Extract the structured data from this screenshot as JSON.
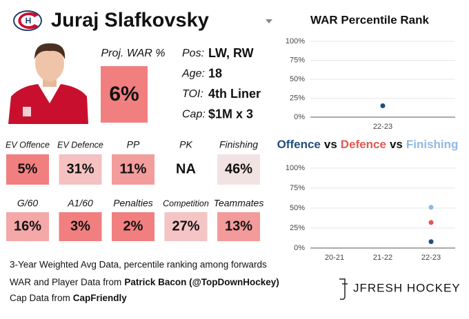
{
  "header": {
    "name": "Juraj Slafkovsky"
  },
  "card": {
    "proj_war_label": "Proj. WAR %",
    "proj_war": "6%",
    "proj_war_color": "#f17f7f",
    "bio": [
      {
        "label": "Pos:",
        "value": "LW, RW"
      },
      {
        "label": "Age:",
        "value": "18"
      },
      {
        "label": "TOI:",
        "value": "4th Liner"
      },
      {
        "label": "Cap:",
        "value": "$1M x 3"
      }
    ]
  },
  "stats": [
    {
      "label": "EV Offence",
      "value": "5%",
      "color": "#f17f7f"
    },
    {
      "label": "EV Defence",
      "value": "31%",
      "color": "#f5c1c1"
    },
    {
      "label": "PP",
      "value": "11%",
      "color": "#f39c9c"
    },
    {
      "label": "PK",
      "value": "NA",
      "color": "#ffffff"
    },
    {
      "label": "Finishing",
      "value": "46%",
      "color": "#f3e2e2"
    },
    {
      "label": "G/60",
      "value": "16%",
      "color": "#f4a8a8"
    },
    {
      "label": "A1/60",
      "value": "3%",
      "color": "#f17f7f"
    },
    {
      "label": "Penalties",
      "value": "2%",
      "color": "#f17f7f"
    },
    {
      "label": "Competition",
      "value": "27%",
      "color": "#f5c4c4"
    },
    {
      "label": "Teammates",
      "value": "13%",
      "color": "#f39a9a"
    }
  ],
  "footer": {
    "note": "3-Year Weighted Avg Data, percentile ranking among forwards",
    "sources": [
      {
        "text": "WAR and Player Data from",
        "source": "Patrick Bacon (@TopDownHockey)"
      },
      {
        "text": "Cap Data from",
        "source": "CapFriendly"
      }
    ],
    "brand": "JFRESH HOCKEY"
  },
  "chart_data": [
    {
      "type": "scatter",
      "title": "WAR Percentile Rank",
      "categories": [
        "22-23"
      ],
      "values": [
        15
      ],
      "color": "#1d4e7e",
      "ylim": [
        0,
        100
      ],
      "yticks": [
        {
          "value": 0,
          "label": "0%"
        },
        {
          "value": 25,
          "label": "25%"
        },
        {
          "value": 50,
          "label": "50%"
        },
        {
          "value": 75,
          "label": "75%"
        },
        {
          "value": 100,
          "label": "100%"
        }
      ],
      "grid": true
    },
    {
      "type": "scatter",
      "title_separator": "vs",
      "categories": [
        "20-21",
        "21-22",
        "22-23"
      ],
      "series": [
        {
          "name": "Offence",
          "color": "#1d4e7e",
          "values": [
            null,
            null,
            8
          ]
        },
        {
          "name": "Defence",
          "color": "#e3574f",
          "values": [
            null,
            null,
            32
          ]
        },
        {
          "name": "Finishing",
          "color": "#90b9e0",
          "values": [
            null,
            null,
            51
          ]
        }
      ],
      "ylim": [
        0,
        100
      ],
      "yticks": [
        {
          "value": 0,
          "label": "0%"
        },
        {
          "value": 25,
          "label": "25%"
        },
        {
          "value": 50,
          "label": "50%"
        },
        {
          "value": 75,
          "label": "75%"
        },
        {
          "value": 100,
          "label": "100%"
        }
      ],
      "grid": true
    }
  ]
}
